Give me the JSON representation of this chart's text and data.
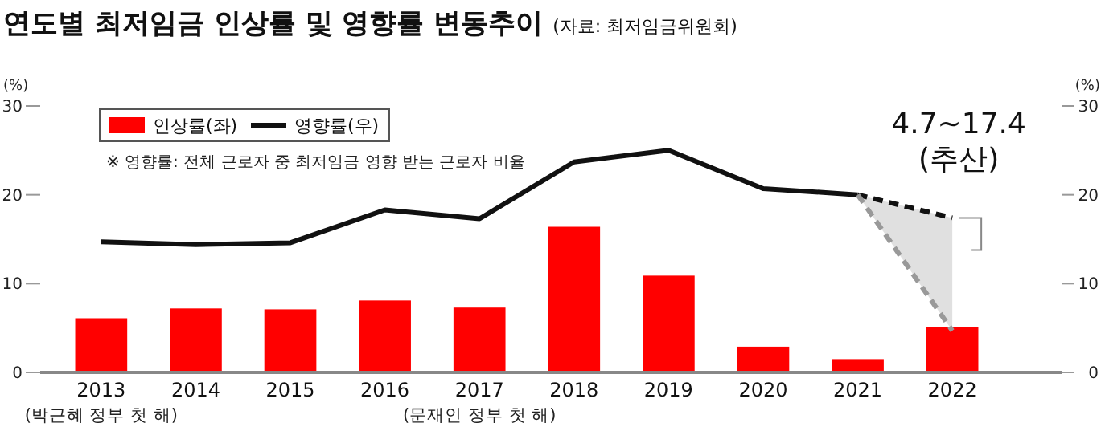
{
  "chart_data": {
    "type": "bar",
    "title": "연도별 최저임금 인상률 및 영향률 변동추이",
    "subtitle": "(자료: 최저임금위원회)",
    "ylabel": "(%)",
    "y2label": "(%)",
    "categories": [
      "2013",
      "2014",
      "2015",
      "2016",
      "2017",
      "2018",
      "2019",
      "2020",
      "2021",
      "2022"
    ],
    "series": [
      {
        "name": "인상률(좌)",
        "color": "#ff0000",
        "values": [
          6.1,
          7.2,
          7.1,
          8.1,
          7.3,
          16.4,
          10.9,
          2.9,
          1.5,
          5.1
        ]
      },
      {
        "name": "영향률(우)",
        "type": "line",
        "axis": "y2",
        "color": "#111111",
        "values": [
          14.7,
          14.4,
          14.6,
          18.3,
          17.3,
          23.7,
          25.0,
          20.7,
          20.0,
          null
        ]
      },
      {
        "type": "line",
        "axis": "y2",
        "color": "#111111",
        "line_style": "dashed",
        "values": [
          null,
          null,
          null,
          null,
          null,
          null,
          null,
          null,
          20.0,
          17.4
        ],
        "lower": [
          null,
          null,
          null,
          null,
          null,
          null,
          null,
          null,
          20.0,
          4.7
        ],
        "upper": [
          null,
          null,
          null,
          null,
          null,
          null,
          null,
          null,
          20.0,
          17.4
        ]
      },
      {
        "type": "line",
        "axis": "y2",
        "color": "#999999",
        "line_style": "dashed",
        "values": [
          null,
          null,
          null,
          null,
          null,
          null,
          null,
          null,
          20.0,
          4.7
        ]
      }
    ],
    "ylim": [
      0,
      30
    ],
    "yticks": [
      0,
      10,
      20,
      30
    ],
    "y2lim": [
      0,
      30
    ],
    "y2ticks": [
      0,
      10,
      20,
      30
    ],
    "legend": "top left",
    "annotations": [
      "※ 영향률: 전체 근로자 중 최저임금 영향 받는 근로자 비율",
      {
        "text": "4.7~17.4 (추산)",
        "x": "2022",
        "y": 17.4
      },
      "(박근혜 정부 첫 해)",
      "(문재인 정부 첫 해)"
    ]
  }
}
